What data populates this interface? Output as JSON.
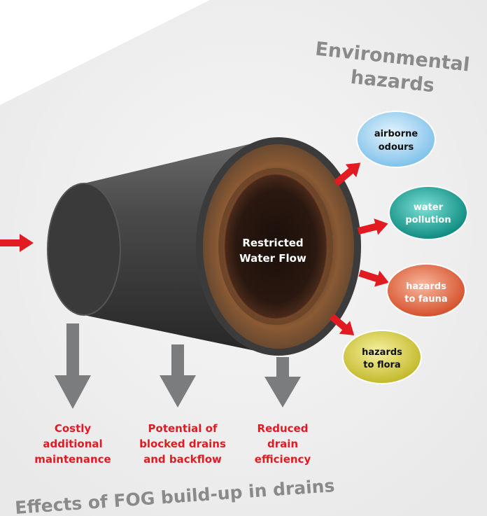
{
  "colors": {
    "background_panel": "#f1f1f1",
    "arrow_red": "#e21b22",
    "arrow_grey": "#7b7c7e",
    "label_red": "#e21b22",
    "heading_grey": "#8a8a8a",
    "pipe_dark": "#3e3e3e",
    "rust": "#7a4a2a",
    "bubble_blue": "#a9d6f2",
    "bubble_teal": "#1fa79b",
    "bubble_orange": "#e86a3e",
    "bubble_yellow": "#d9d24a"
  },
  "environmental": {
    "heading_line1": "Environmental",
    "heading_line2": "hazards",
    "bubbles": [
      {
        "line1": "airborne",
        "line2": "odours",
        "color": "#a9d6f2",
        "icon": "bubble"
      },
      {
        "line1": "water",
        "line2": "pollution",
        "color": "#1fa79b",
        "icon": "bubble"
      },
      {
        "line1": "hazards",
        "line2": "to fauna",
        "color": "#e86a3e",
        "icon": "bubble"
      },
      {
        "line1": "hazards",
        "line2": "to flora",
        "color": "#d9d24a",
        "icon": "bubble"
      }
    ]
  },
  "pipe": {
    "center_line1": "Restricted",
    "center_line2": "Water Flow"
  },
  "effects": [
    {
      "line1": "Costly",
      "line2": "additional",
      "line3": "maintenance"
    },
    {
      "line1": "Potential of",
      "line2": "blocked drains",
      "line3": "and backflow"
    },
    {
      "line1": "Reduced",
      "line2": "drain",
      "line3": "efficiency"
    }
  ],
  "caption": "Effects of FOG build-up in drains"
}
